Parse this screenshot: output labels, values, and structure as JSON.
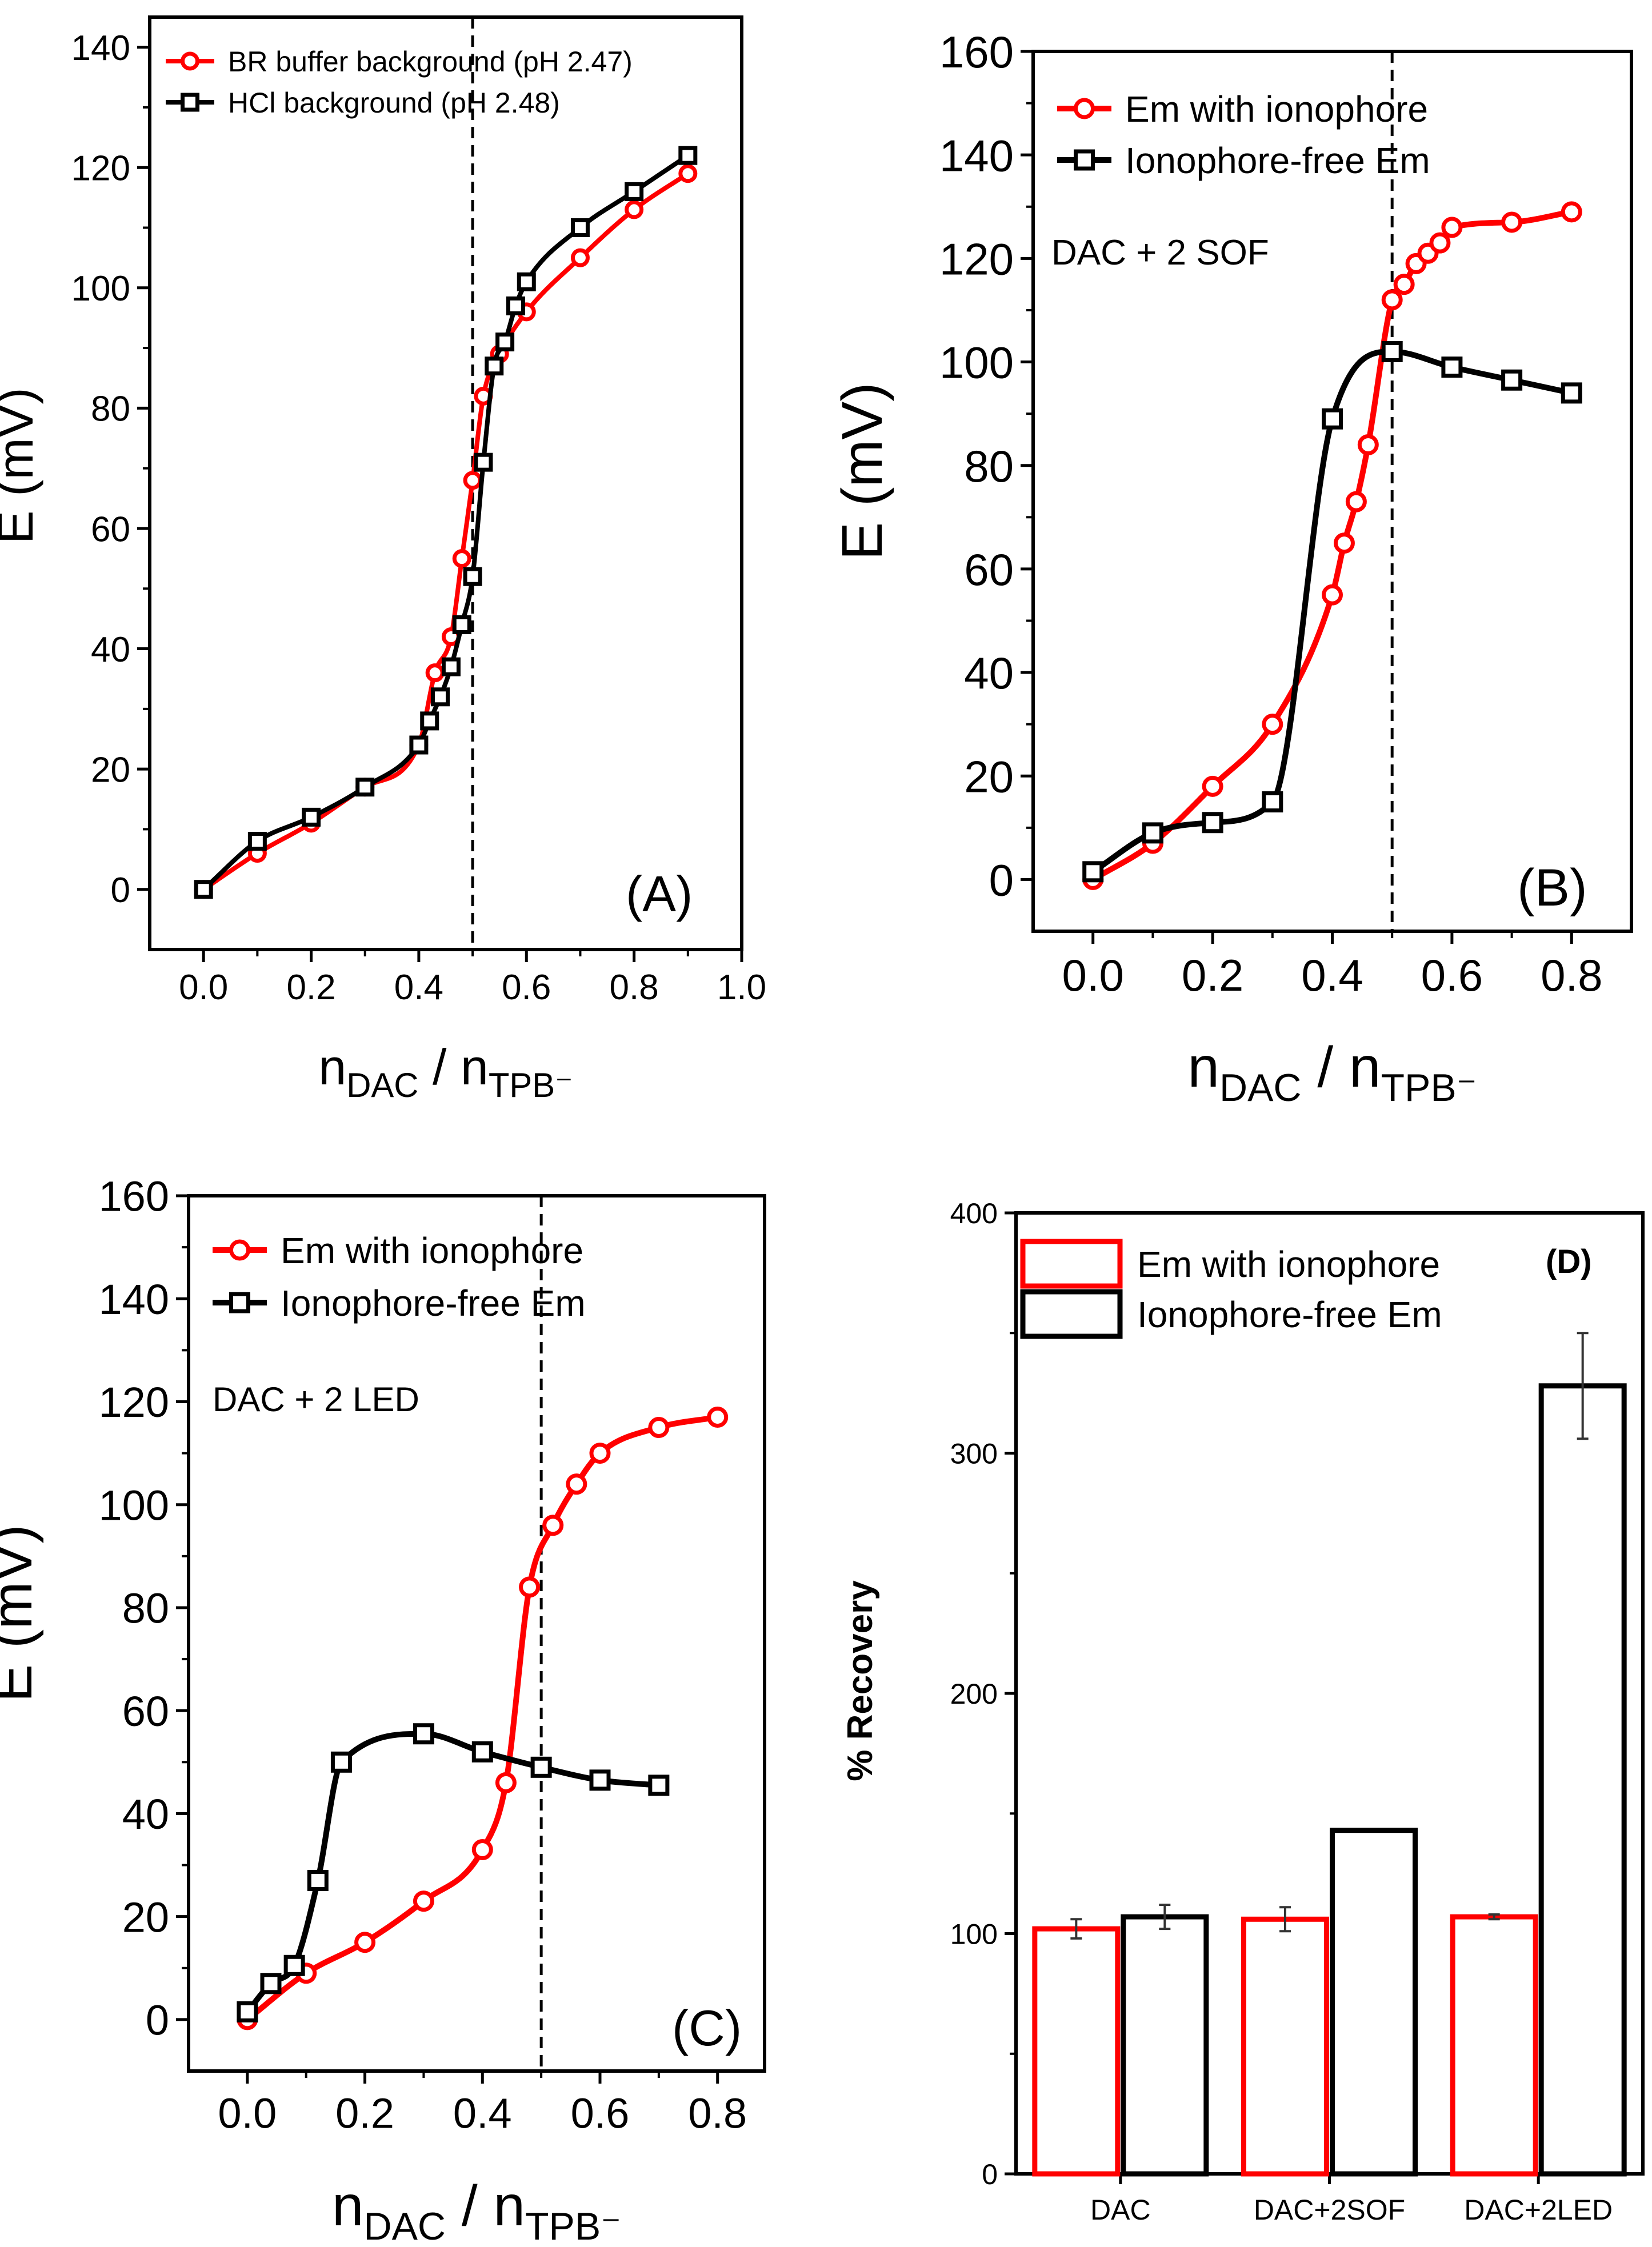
{
  "chart_data": [
    {
      "type": "line",
      "panel_label": "(A)",
      "xlabel": {
        "main": "n",
        "sub1": "DAC",
        "mid": " / n",
        "sub2": "TPB⁻"
      },
      "ylabel": "E (mV)",
      "xlim": [
        -0.1,
        1.0
      ],
      "ylim": [
        -10,
        145
      ],
      "xticks": [
        0.0,
        0.2,
        0.4,
        0.6,
        0.8,
        1.0
      ],
      "yticks": [
        0,
        20,
        40,
        60,
        80,
        100,
        120,
        140
      ],
      "vline": 0.5,
      "series": [
        {
          "name": "BR buffer background (pH 2.47)",
          "color": "#ff0000",
          "marker": "circle",
          "x": [
            0.0,
            0.1,
            0.2,
            0.3,
            0.4,
            0.43,
            0.46,
            0.48,
            0.5,
            0.52,
            0.55,
            0.6,
            0.7,
            0.8,
            0.9
          ],
          "y": [
            0,
            6,
            11,
            17,
            24,
            36,
            42,
            55,
            68,
            82,
            89,
            96,
            105,
            113,
            119
          ]
        },
        {
          "name": "HCl background (pH 2.48)",
          "color": "#000000",
          "marker": "square",
          "x": [
            0.0,
            0.1,
            0.2,
            0.3,
            0.4,
            0.42,
            0.44,
            0.46,
            0.48,
            0.5,
            0.52,
            0.54,
            0.56,
            0.58,
            0.6,
            0.7,
            0.8,
            0.9
          ],
          "y": [
            0,
            8,
            12,
            17,
            24,
            28,
            32,
            37,
            44,
            52,
            71,
            87,
            91,
            97,
            101,
            110,
            116,
            122
          ]
        }
      ]
    },
    {
      "type": "line",
      "panel_label": "(B)",
      "annotation": "DAC + 2 SOF",
      "xlabel": {
        "main": "n",
        "sub1": "DAC",
        "mid": " / n",
        "sub2": "TPB⁻"
      },
      "ylabel": "E (mV)",
      "xlim": [
        -0.1,
        0.9
      ],
      "ylim": [
        -10,
        160
      ],
      "xticks": [
        0.0,
        0.2,
        0.4,
        0.6,
        0.8
      ],
      "yticks": [
        0,
        20,
        40,
        60,
        80,
        100,
        120,
        140,
        160
      ],
      "vline": 0.5,
      "series": [
        {
          "name": "Em with ionophore",
          "color": "#ff0000",
          "marker": "circle",
          "x": [
            0.0,
            0.1,
            0.2,
            0.3,
            0.4,
            0.42,
            0.44,
            0.46,
            0.5,
            0.52,
            0.54,
            0.56,
            0.58,
            0.6,
            0.7,
            0.8
          ],
          "y": [
            0,
            7,
            18,
            30,
            55,
            65,
            73,
            84,
            112,
            115,
            119,
            121,
            123,
            126,
            127,
            129
          ]
        },
        {
          "name": "Ionophore-free Em",
          "color": "#000000",
          "marker": "square",
          "x": [
            0.0,
            0.1,
            0.2,
            0.3,
            0.4,
            0.5,
            0.6,
            0.7,
            0.8
          ],
          "y": [
            1.5,
            9,
            11,
            15,
            89,
            102,
            99,
            96.5,
            94
          ]
        }
      ]
    },
    {
      "type": "line",
      "panel_label": "(C)",
      "annotation": "DAC + 2 LED",
      "xlabel": {
        "main": "n",
        "sub1": "DAC",
        "mid": " / n",
        "sub2": "TPB⁻"
      },
      "ylabel": "E (mV)",
      "xlim": [
        -0.1,
        0.88
      ],
      "ylim": [
        -10,
        160
      ],
      "xticks": [
        0.0,
        0.2,
        0.4,
        0.6,
        0.8
      ],
      "yticks": [
        0,
        20,
        40,
        60,
        80,
        100,
        120,
        140,
        160
      ],
      "vline": 0.5,
      "series": [
        {
          "name": "Em with ionophore",
          "color": "#ff0000",
          "marker": "circle",
          "x": [
            0.0,
            0.1,
            0.2,
            0.3,
            0.4,
            0.44,
            0.48,
            0.52,
            0.56,
            0.6,
            0.7,
            0.8
          ],
          "y": [
            0,
            9,
            15,
            23,
            33,
            46,
            84,
            96,
            104,
            110,
            115,
            117
          ]
        },
        {
          "name": "Ionophore-free Em",
          "color": "#000000",
          "marker": "square",
          "x": [
            0.0,
            0.04,
            0.08,
            0.12,
            0.16,
            0.3,
            0.4,
            0.5,
            0.6,
            0.7
          ],
          "y": [
            1.5,
            7,
            10.5,
            27,
            50,
            55.5,
            52,
            49,
            46.5,
            45.5
          ]
        }
      ]
    },
    {
      "type": "bar",
      "panel_label": "(D)",
      "ylabel": "% Recovery",
      "ylim": [
        0,
        400
      ],
      "yticks": [
        0,
        100,
        200,
        300,
        400
      ],
      "categories": [
        "DAC",
        "DAC+2SOF",
        "DAC+2LED"
      ],
      "series": [
        {
          "name": "Em with ionophore",
          "color": "#ff0000",
          "values": [
            102,
            106,
            107
          ],
          "errors": [
            4,
            5,
            1
          ]
        },
        {
          "name": "Ionophore-free Em",
          "color": "#000000",
          "values": [
            107,
            143,
            328
          ],
          "errors": [
            5,
            null,
            22
          ]
        }
      ]
    }
  ]
}
